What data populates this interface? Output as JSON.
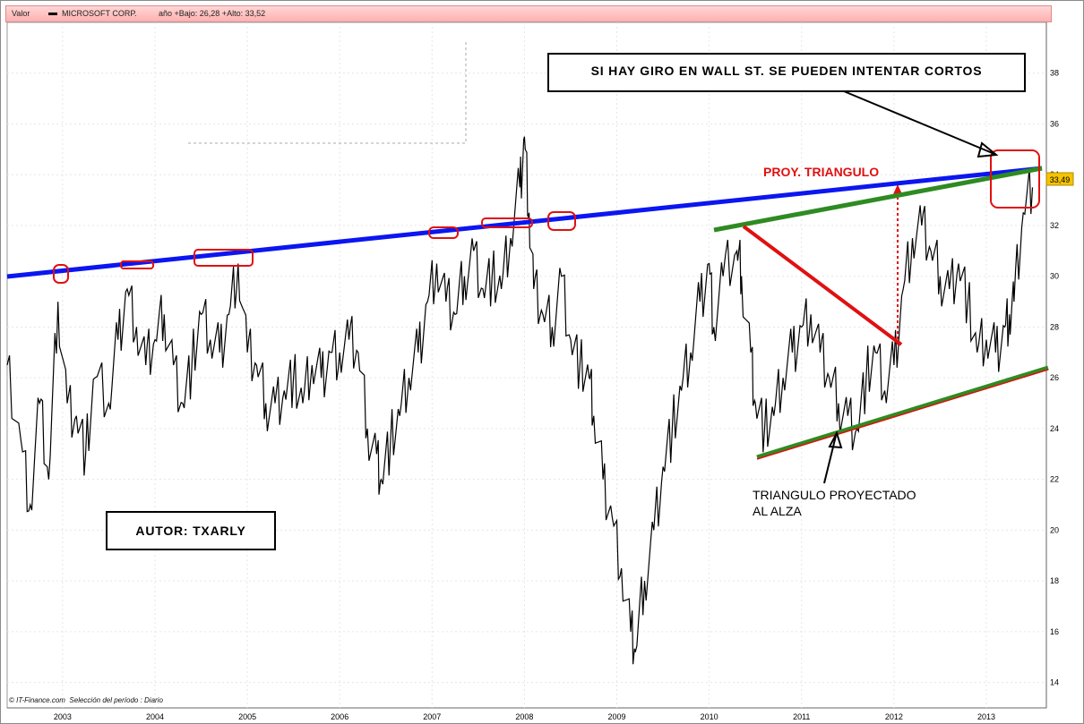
{
  "header": {
    "valor_label": "Valor",
    "series_name": "MICROSOFT CORP.",
    "stats": "año +Bajo: 26,28 +Alto: 33,52"
  },
  "footer": {
    "source": "© IT-Finance.com",
    "period": "Selección del período : Diario"
  },
  "annotations": {
    "wall_st": "SI HAY GIRO EN WALL ST. SE PUEDEN INTENTAR CORTOS",
    "proj_triangle": "PROY. TRIANGULO",
    "triangle_line1": "TRIANGULO  PROYECTADO",
    "triangle_line2": "AL  ALZA",
    "author": "AUTOR: TXARLY"
  },
  "colors": {
    "resistance": "#0b16f0",
    "triangle_upper": "#2e8b22",
    "triangle_lower": "#2e8b22",
    "triangle_descending": "#e01010",
    "price": "#000000",
    "highlight": "#e01010",
    "price_tag": "#f5c400"
  },
  "chart_data": {
    "type": "line",
    "title": "",
    "xlabel": "",
    "ylabel": "",
    "ylim": [
      13,
      40
    ],
    "xlim": [
      2002.4,
      2013.65
    ],
    "x_ticks": [
      "2003",
      "2004",
      "2005",
      "2006",
      "2007",
      "2008",
      "2009",
      "2010",
      "2011",
      "2012",
      "2013"
    ],
    "y_ticks": [
      "14",
      "16",
      "18",
      "20",
      "22",
      "24",
      "26",
      "28",
      "30",
      "32",
      "34",
      "36",
      "38"
    ],
    "last_price_label": "33,49",
    "series": [
      {
        "values": [
          [
            2002.4,
            26.5
          ],
          [
            2002.55,
            23.5
          ],
          [
            2002.65,
            21.0
          ],
          [
            2002.75,
            25.0
          ],
          [
            2002.85,
            22.0
          ],
          [
            2002.95,
            29.0
          ],
          [
            2003.05,
            25.0
          ],
          [
            2003.15,
            24.5
          ],
          [
            2003.25,
            23.0
          ],
          [
            2003.35,
            26.0
          ],
          [
            2003.5,
            25.0
          ],
          [
            2003.6,
            27.5
          ],
          [
            2003.7,
            29.5
          ],
          [
            2003.8,
            28.0
          ],
          [
            2003.9,
            26.5
          ],
          [
            2004.0,
            27.5
          ],
          [
            2004.1,
            28.5
          ],
          [
            2004.2,
            26.5
          ],
          [
            2004.3,
            25.0
          ],
          [
            2004.4,
            26.5
          ],
          [
            2004.5,
            28.5
          ],
          [
            2004.6,
            27.5
          ],
          [
            2004.7,
            27.0
          ],
          [
            2004.8,
            28.5
          ],
          [
            2004.9,
            30.5
          ],
          [
            2005.0,
            27.0
          ],
          [
            2005.1,
            26.5
          ],
          [
            2005.2,
            25.0
          ],
          [
            2005.3,
            25.0
          ],
          [
            2005.4,
            25.5
          ],
          [
            2005.5,
            26.0
          ],
          [
            2005.6,
            25.0
          ],
          [
            2005.7,
            26.5
          ],
          [
            2005.8,
            26.0
          ],
          [
            2005.9,
            27.0
          ],
          [
            2006.0,
            27.0
          ],
          [
            2006.1,
            27.5
          ],
          [
            2006.2,
            27.0
          ],
          [
            2006.3,
            24.0
          ],
          [
            2006.4,
            23.0
          ],
          [
            2006.45,
            22.0
          ],
          [
            2006.55,
            23.5
          ],
          [
            2006.65,
            24.5
          ],
          [
            2006.75,
            26.0
          ],
          [
            2006.85,
            27.0
          ],
          [
            2006.95,
            29.0
          ],
          [
            2007.05,
            30.5
          ],
          [
            2007.15,
            29.0
          ],
          [
            2007.25,
            28.5
          ],
          [
            2007.35,
            30.0
          ],
          [
            2007.45,
            31.0
          ],
          [
            2007.55,
            29.5
          ],
          [
            2007.65,
            30.0
          ],
          [
            2007.75,
            29.5
          ],
          [
            2007.85,
            31.5
          ],
          [
            2007.95,
            33.5
          ],
          [
            2008.0,
            35.5
          ],
          [
            2008.05,
            32.5
          ],
          [
            2008.1,
            29.5
          ],
          [
            2008.2,
            28.5
          ],
          [
            2008.3,
            28.0
          ],
          [
            2008.4,
            30.0
          ],
          [
            2008.5,
            27.5
          ],
          [
            2008.6,
            26.5
          ],
          [
            2008.7,
            26.0
          ],
          [
            2008.75,
            24.5
          ],
          [
            2008.85,
            22.0
          ],
          [
            2008.95,
            20.5
          ],
          [
            2009.05,
            18.5
          ],
          [
            2009.15,
            16.0
          ],
          [
            2009.2,
            15.2
          ],
          [
            2009.3,
            18.0
          ],
          [
            2009.4,
            20.0
          ],
          [
            2009.5,
            22.5
          ],
          [
            2009.6,
            24.0
          ],
          [
            2009.7,
            25.5
          ],
          [
            2009.8,
            27.0
          ],
          [
            2009.9,
            29.0
          ],
          [
            2010.0,
            30.5
          ],
          [
            2010.05,
            28.0
          ],
          [
            2010.15,
            30.0
          ],
          [
            2010.3,
            31.0
          ],
          [
            2010.35,
            30.0
          ],
          [
            2010.45,
            27.0
          ],
          [
            2010.5,
            25.0
          ],
          [
            2010.6,
            24.0
          ],
          [
            2010.7,
            24.5
          ],
          [
            2010.8,
            26.0
          ],
          [
            2010.9,
            27.0
          ],
          [
            2011.0,
            28.0
          ],
          [
            2011.1,
            28.5
          ],
          [
            2011.2,
            27.0
          ],
          [
            2011.3,
            26.0
          ],
          [
            2011.4,
            25.0
          ],
          [
            2011.5,
            24.5
          ],
          [
            2011.6,
            24.0
          ],
          [
            2011.7,
            26.0
          ],
          [
            2011.8,
            27.0
          ],
          [
            2011.9,
            25.5
          ],
          [
            2012.0,
            26.5
          ],
          [
            2012.1,
            29.5
          ],
          [
            2012.2,
            31.5
          ],
          [
            2012.3,
            32.0
          ],
          [
            2012.4,
            31.0
          ],
          [
            2012.5,
            30.0
          ],
          [
            2012.6,
            29.5
          ],
          [
            2012.7,
            30.5
          ],
          [
            2012.8,
            29.0
          ],
          [
            2012.9,
            27.0
          ],
          [
            2013.0,
            27.5
          ],
          [
            2013.1,
            27.0
          ],
          [
            2013.2,
            28.0
          ],
          [
            2013.25,
            28.5
          ],
          [
            2013.3,
            29.0
          ],
          [
            2013.4,
            32.5
          ],
          [
            2013.5,
            33.5
          ]
        ]
      }
    ]
  }
}
